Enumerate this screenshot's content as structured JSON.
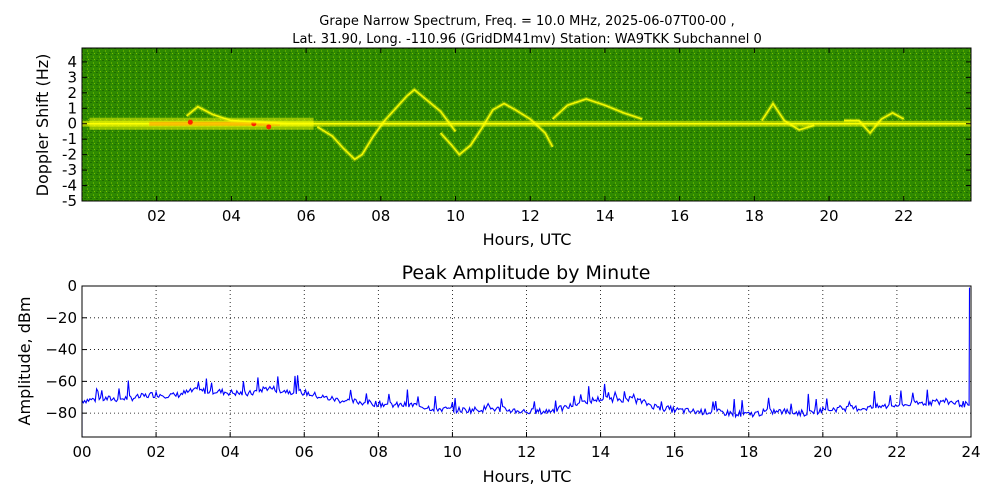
{
  "figure": {
    "title_line1": "Grape Narrow Spectrum, Freq. = 10.0 MHz, 2025-06-07T00-00 ,",
    "title_line2": "Lat.  31.90, Long. -110.96 (GridDM41mv) Station: WA9TKK Subchannel 0"
  },
  "colors": {
    "spectrogram_background": "#2f8a00",
    "spectrogram_dark": "#1f6a00",
    "spectrogram_yellow": "#ffff00",
    "spectrogram_orange": "#ffaa00",
    "spectrogram_red": "#ff2200",
    "amplitude_line": "#0000ff",
    "grid": "#000000"
  },
  "chart_data": [
    {
      "type": "heatmap",
      "title": "",
      "xlabel": "Hours, UTC",
      "ylabel": "Doppler Shift (Hz)",
      "xlim": [
        0,
        23.8
      ],
      "ylim": [
        -5,
        4.9
      ],
      "xticks": [
        2,
        4,
        6,
        8,
        10,
        12,
        14,
        16,
        18,
        20,
        22
      ],
      "xtick_labels": [
        "02",
        "04",
        "06",
        "08",
        "10",
        "12",
        "14",
        "16",
        "18",
        "20",
        "22"
      ],
      "yticks": [
        4,
        3,
        2,
        1,
        0,
        -1,
        -2,
        -3,
        -4,
        -5
      ],
      "ytick_labels": [
        "4",
        "3",
        "2",
        "1",
        "0",
        "-1",
        "-2",
        "-3",
        "-4",
        "-5"
      ],
      "colormap": "green-yellow-red",
      "carrier_doppler_hz": 0,
      "doppler_traces": [
        {
          "points": [
            [
              2.8,
              0.5
            ],
            [
              3.1,
              1.1
            ],
            [
              3.5,
              0.6
            ],
            [
              4.0,
              0.2
            ],
            [
              4.8,
              0.1
            ],
            [
              5.5,
              0.0
            ],
            [
              6.2,
              0.0
            ]
          ]
        },
        {
          "points": [
            [
              6.3,
              -0.2
            ],
            [
              6.7,
              -0.8
            ],
            [
              7.0,
              -1.6
            ],
            [
              7.3,
              -2.3
            ],
            [
              7.5,
              -2.0
            ],
            [
              7.8,
              -0.8
            ],
            [
              8.1,
              0.2
            ],
            [
              8.4,
              1.0
            ],
            [
              8.7,
              1.8
            ],
            [
              8.9,
              2.2
            ],
            [
              9.2,
              1.6
            ],
            [
              9.6,
              0.8
            ],
            [
              10.0,
              -0.5
            ]
          ]
        },
        {
          "points": [
            [
              9.6,
              -0.6
            ],
            [
              9.9,
              -1.4
            ],
            [
              10.1,
              -2.0
            ],
            [
              10.4,
              -1.4
            ],
            [
              10.7,
              -0.3
            ],
            [
              11.0,
              0.9
            ],
            [
              11.3,
              1.3
            ],
            [
              11.6,
              0.9
            ],
            [
              12.0,
              0.3
            ],
            [
              12.4,
              -0.6
            ],
            [
              12.6,
              -1.5
            ]
          ]
        },
        {
          "points": [
            [
              12.6,
              0.3
            ],
            [
              13.0,
              1.2
            ],
            [
              13.5,
              1.6
            ],
            [
              14.0,
              1.2
            ],
            [
              14.5,
              0.7
            ],
            [
              15.0,
              0.3
            ]
          ]
        },
        {
          "points": [
            [
              18.2,
              0.2
            ],
            [
              18.5,
              1.3
            ],
            [
              18.8,
              0.2
            ],
            [
              19.2,
              -0.4
            ],
            [
              19.6,
              -0.1
            ]
          ]
        },
        {
          "points": [
            [
              20.4,
              0.2
            ],
            [
              20.8,
              0.2
            ],
            [
              21.1,
              -0.6
            ],
            [
              21.4,
              0.3
            ],
            [
              21.7,
              0.7
            ],
            [
              22.0,
              0.3
            ]
          ]
        }
      ]
    },
    {
      "type": "line",
      "title": "Peak Amplitude by Minute",
      "xlabel": "Hours, UTC",
      "ylabel": "Amplitude, dBm",
      "xlim": [
        0,
        24
      ],
      "ylim": [
        -95,
        0
      ],
      "grid": true,
      "xticks": [
        0,
        2,
        4,
        6,
        8,
        10,
        12,
        14,
        16,
        18,
        20,
        22,
        24
      ],
      "xtick_labels": [
        "00",
        "02",
        "04",
        "06",
        "08",
        "10",
        "12",
        "14",
        "16",
        "18",
        "20",
        "22",
        "24"
      ],
      "yticks": [
        0,
        -20,
        -40,
        -60,
        -80
      ],
      "ytick_labels": [
        "0",
        "−20",
        "−40",
        "−60",
        "−80"
      ],
      "series": [
        {
          "x": [
            0,
            0.5,
            1,
            1.5,
            2,
            2.5,
            3,
            3.5,
            4,
            4.5,
            5,
            5.5,
            6,
            6.5,
            7,
            7.5,
            8,
            8.5,
            9,
            9.5,
            10,
            10.5,
            11,
            11.5,
            12,
            12.5,
            13,
            13.5,
            14,
            14.5,
            15,
            15.5,
            16,
            16.5,
            17,
            17.5,
            18,
            18.5,
            19,
            19.5,
            20,
            20.5,
            21,
            21.5,
            22,
            22.5,
            23,
            23.5,
            23.95
          ],
          "values": [
            -72,
            -71,
            -71,
            -70,
            -68,
            -69,
            -66,
            -66,
            -67,
            -68,
            -64,
            -66,
            -67,
            -70,
            -72,
            -73,
            -74,
            -75,
            -75,
            -77,
            -78,
            -78,
            -77,
            -78,
            -79,
            -79,
            -77,
            -73,
            -71,
            -71,
            -72,
            -76,
            -78,
            -79,
            -79,
            -80,
            -81,
            -79,
            -79,
            -80,
            -78,
            -77,
            -77,
            -76,
            -75,
            -74,
            -73,
            -73,
            -75
          ],
          "start_value": -96,
          "end_spike": -1
        }
      ]
    }
  ]
}
